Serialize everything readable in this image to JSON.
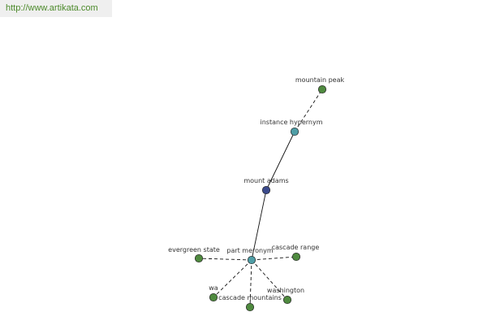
{
  "source_url": "http://www.artikata.com",
  "colors": {
    "center_node": "#3b4a8c",
    "relation_node": "#4f9ea6",
    "term_node": "#4f8a3f",
    "node_stroke": "#222222",
    "edge": "#111111",
    "watermark_text": "#4c8a2b"
  },
  "graph": {
    "center": {
      "id": "mount_adams",
      "label": "mount adams"
    },
    "relations": [
      {
        "id": "instance_hypernym",
        "label": "instance hypernym",
        "terms": [
          {
            "id": "mountain_peak",
            "label": "mountain peak"
          }
        ]
      },
      {
        "id": "part_meronym",
        "label": "part meronym",
        "terms": [
          {
            "id": "evergreen_state",
            "label": "evergreen state"
          },
          {
            "id": "cascade_range",
            "label": "cascade range"
          },
          {
            "id": "wa",
            "label": "wa"
          },
          {
            "id": "cascade_mountains",
            "label": "cascade mountains"
          },
          {
            "id": "washington",
            "label": "washington"
          }
        ]
      }
    ]
  }
}
